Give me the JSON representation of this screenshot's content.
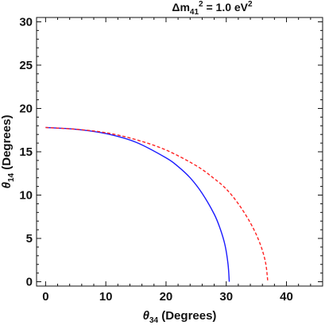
{
  "chart_data": {
    "type": "line",
    "title": "Δm41² = 1.0 eV²",
    "title_parts": {
      "prefix": "Δm",
      "sub": "41",
      "sup": "2",
      "suffix": " = 1.0 eV",
      "suffix_sup": "2"
    },
    "xlabel": "θ34 (Degrees)",
    "xlabel_parts": {
      "symbol": "θ",
      "sub": "34",
      "rest": " (Degrees)"
    },
    "ylabel": "θ14 (Degrees)",
    "ylabel_parts": {
      "symbol": "θ",
      "sub": "14",
      "rest": " (Degrees)"
    },
    "xlim": [
      -1.5,
      46
    ],
    "ylim": [
      -0.5,
      30.5
    ],
    "x_ticks": [
      0,
      10,
      20,
      30,
      40
    ],
    "x_tick_labels": [
      "0",
      "10",
      "20",
      "30",
      "40"
    ],
    "y_ticks": [
      0,
      5,
      10,
      15,
      20,
      25,
      30
    ],
    "y_tick_labels": [
      "0",
      "5",
      "10",
      "15",
      "20",
      "25",
      "30"
    ],
    "grid": false,
    "legend": "none",
    "series": [
      {
        "color": "#1a1aff",
        "dash": "solid",
        "points": [
          [
            0,
            17.8
          ],
          [
            5,
            17.6
          ],
          [
            10,
            17.1
          ],
          [
            15,
            16.1
          ],
          [
            20,
            14.3
          ],
          [
            22,
            13.3
          ],
          [
            24,
            12.0
          ],
          [
            26,
            10.2
          ],
          [
            28,
            7.8
          ],
          [
            29,
            6.1
          ],
          [
            29.8,
            4.2
          ],
          [
            30.3,
            2.0
          ],
          [
            30.5,
            0
          ]
        ]
      },
      {
        "color": "#ff2020",
        "dash": "dashed",
        "points": [
          [
            0,
            17.8
          ],
          [
            5,
            17.6
          ],
          [
            10,
            17.2
          ],
          [
            15,
            16.4
          ],
          [
            20,
            15.2
          ],
          [
            25,
            13.4
          ],
          [
            28,
            11.9
          ],
          [
            30,
            10.7
          ],
          [
            32,
            9.0
          ],
          [
            34,
            6.8
          ],
          [
            35.5,
            4.6
          ],
          [
            36.5,
            2.3
          ],
          [
            36.9,
            0
          ]
        ]
      }
    ]
  }
}
